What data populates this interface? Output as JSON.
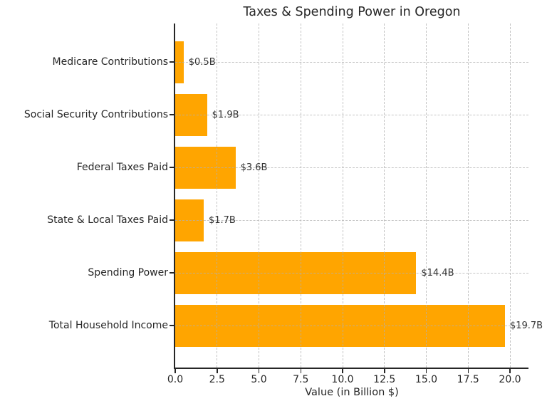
{
  "chart_data": {
    "type": "bar",
    "orientation": "horizontal",
    "title": "Taxes & Spending Power in Oregon",
    "xlabel": "Value (in Billion $)",
    "ylabel": "",
    "categories": [
      "Medicare Contributions",
      "Social Security Contributions",
      "Federal Taxes Paid",
      "State & Local Taxes Paid",
      "Spending Power",
      "Total Household Income"
    ],
    "values": [
      0.5,
      1.9,
      3.6,
      1.7,
      14.4,
      19.7
    ],
    "value_labels": [
      "$0.5B",
      "$1.9B",
      "$3.6B",
      "$1.7B",
      "$14.4B",
      "$19.7B"
    ],
    "x_ticks": [
      0.0,
      2.5,
      5.0,
      7.5,
      10.0,
      12.5,
      15.0,
      17.5,
      20.0
    ],
    "x_tick_labels": [
      "0.0",
      "2.5",
      "5.0",
      "7.5",
      "10.0",
      "12.5",
      "15.0",
      "17.5",
      "20.0"
    ],
    "xlim": [
      0,
      21.1
    ],
    "grid": true,
    "grid_style": "dashed",
    "legend": null,
    "colors": {
      "bar": "#FFA500",
      "spine": "#262626",
      "grid": "#b0b0b0",
      "text": "#262626",
      "annotation": "#333333",
      "background": "#ffffff"
    }
  }
}
